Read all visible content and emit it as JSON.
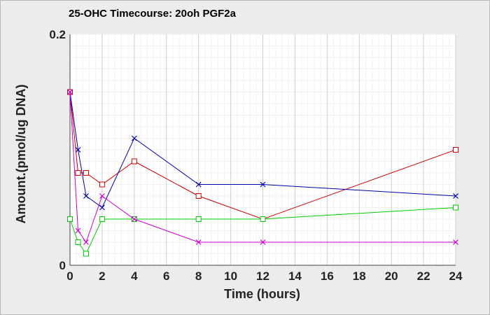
{
  "chart_data": {
    "type": "line",
    "title": "25-OHC Timecourse: 20oh PGF2a",
    "xlabel": "Time (hours)",
    "ylabel": "Amount.(pmol/ug DNA)",
    "xlim": [
      0,
      24
    ],
    "ylim": [
      0,
      0.2
    ],
    "x_ticks": [
      "0",
      "2",
      "4",
      "6",
      "8",
      "10",
      "12",
      "14",
      "16",
      "18",
      "20",
      "22",
      "24"
    ],
    "y_ticks": [
      "0",
      "0.2"
    ],
    "grid": true,
    "series": [
      {
        "color": "#cc0000",
        "marker": "square",
        "x": [
          0,
          0.5,
          1,
          2,
          4,
          8,
          12,
          24
        ],
        "y": [
          0.15,
          0.08,
          0.08,
          0.07,
          0.09,
          0.06,
          0.04,
          0.1
        ]
      },
      {
        "color": "#0000aa",
        "marker": "x",
        "x": [
          0,
          0.5,
          1,
          2,
          4,
          8,
          12,
          24
        ],
        "y": [
          0.15,
          0.1,
          0.06,
          0.05,
          0.11,
          0.07,
          0.07,
          0.06
        ]
      },
      {
        "color": "#00cc00",
        "marker": "square",
        "x": [
          0,
          0.5,
          1,
          2,
          4,
          8,
          12,
          24
        ],
        "y": [
          0.04,
          0.02,
          0.01,
          0.04,
          0.04,
          0.04,
          0.04,
          0.05
        ]
      },
      {
        "color": "#cc00cc",
        "marker": "x",
        "x": [
          0,
          0.5,
          1,
          2,
          4,
          8,
          12,
          24
        ],
        "y": [
          0.15,
          0.03,
          0.02,
          0.06,
          0.04,
          0.02,
          0.02,
          0.02
        ]
      }
    ]
  }
}
